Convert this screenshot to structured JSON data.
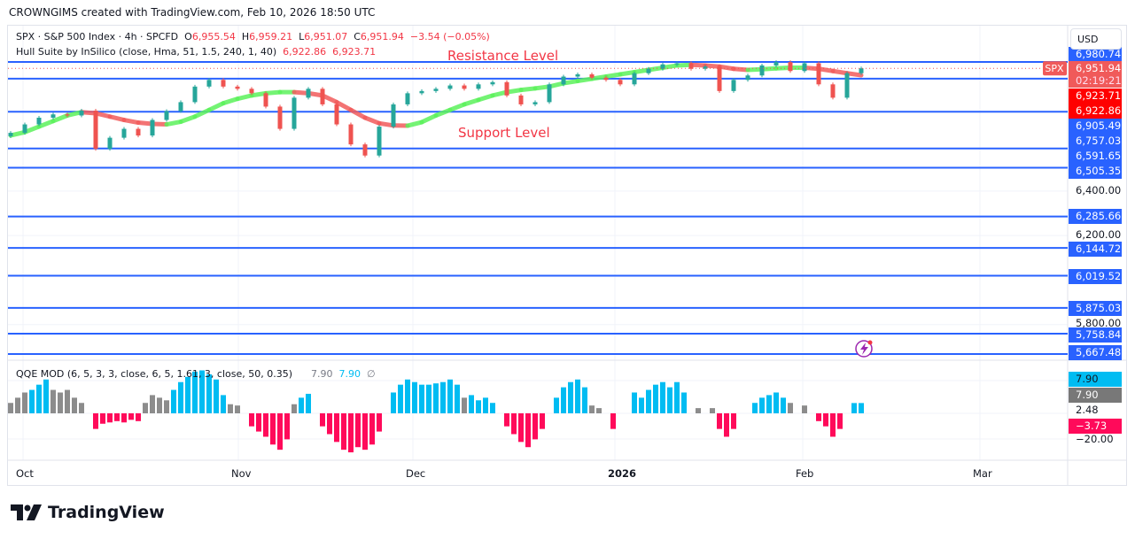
{
  "caption": "CROWNGIMS created with TradingView.com, Feb 10, 2026 18:50 UTC",
  "legend": {
    "symbol": "SPX · S&P 500 Index · 4h · SPCFD",
    "o_label": "O",
    "o": "6,955.54",
    "h_label": "H",
    "h": "6,959.21",
    "l_label": "L",
    "l": "6,951.07",
    "c_label": "C",
    "c": "6,951.94",
    "change": "−3.54 (−0.05%)",
    "hull": "Hull Suite by InSilico (close, Hma, 51, 1.5, 240, 1, 40)",
    "hull_v1": "6,922.86",
    "hull_v2": "6,923.71",
    "qqe": "QQE MOD (6, 5, 3, 3, close, 6, 5, 1.61, 3, close, 50, 0.35)",
    "qqe_v1": "7.90",
    "qqe_v2": "7.90",
    "qqe_v3": "∅"
  },
  "currency": "USD",
  "annotations": {
    "resistance": "Resistance Level",
    "support": "Support Level"
  },
  "symbol_tag": "SPX",
  "countdown": "02:19:21",
  "colors": {
    "up": "#26a69a",
    "down": "#ef5350",
    "level": "#2962ff",
    "hull_up": "#5cf25c",
    "hull_down": "#f25c5c",
    "qqe_blue": "#00bcf2",
    "qqe_gray": "#8c8c8c",
    "qqe_pink": "#ff0a5a",
    "price_tag": "#f05a5a",
    "hull_tag": "#ff0000"
  },
  "chart_data": {
    "type": "candlestick",
    "price_range": [
      5667.48,
      6980.74
    ],
    "levels": [
      6980.74,
      6905.49,
      6757.03,
      6591.65,
      6505.35,
      6285.66,
      6144.72,
      6019.52,
      5875.03,
      5758.84,
      5667.48
    ],
    "level_labels": [
      "6,980.74",
      "6,905.49",
      "6,757.03",
      "6,591.65",
      "6,505.35",
      "6,285.66",
      "6,144.72",
      "6,019.52",
      "5,875.03",
      "5,758.84",
      "5,667.48"
    ],
    "price_ticks": [
      "6,400.00",
      "6,200.00",
      "5,800.00"
    ],
    "last_price": "6,951.94",
    "hull_tag_1": "6,923.71",
    "hull_tag_2": "6,922.86",
    "x_ticks": [
      "Oct",
      "Nov",
      "Dec",
      "2026",
      "Feb",
      "Mar"
    ],
    "closes": [
      6662,
      6700,
      6730,
      6745,
      6740,
      6762,
      6590,
      6640,
      6680,
      6650,
      6720,
      6760,
      6800,
      6870,
      6900,
      6870,
      6860,
      6840,
      6780,
      6680,
      6820,
      6860,
      6790,
      6700,
      6610,
      6560,
      6690,
      6790,
      6840,
      6850,
      6860,
      6875,
      6860,
      6880,
      6890,
      6830,
      6790,
      6800,
      6880,
      6915,
      6925,
      6910,
      6900,
      6880,
      6930,
      6950,
      6970,
      6975,
      6950,
      6960,
      6850,
      6900,
      6920,
      6965,
      6980,
      6940,
      6975,
      6880,
      6820,
      6930,
      6952
    ],
    "hull": [
      6650,
      6665,
      6690,
      6715,
      6740,
      6755,
      6750,
      6735,
      6720,
      6708,
      6702,
      6700,
      6712,
      6735,
      6765,
      6795,
      6815,
      6830,
      6840,
      6845,
      6845,
      6840,
      6830,
      6800,
      6765,
      6730,
      6705,
      6695,
      6694,
      6710,
      6740,
      6765,
      6790,
      6810,
      6830,
      6845,
      6855,
      6862,
      6870,
      6885,
      6895,
      6905,
      6915,
      6925,
      6935,
      6945,
      6955,
      6965,
      6968,
      6965,
      6960,
      6950,
      6945,
      6948,
      6952,
      6955,
      6955,
      6950,
      6940,
      6930,
      6921
    ],
    "qqe_ticks": [
      "2.48",
      "−20.00"
    ],
    "qqe_tags": [
      "7.90",
      "7.90",
      "−3.73"
    ],
    "qqe_values": [
      8,
      12,
      16,
      18,
      22,
      26,
      18,
      16,
      18,
      12,
      8,
      0,
      -12,
      -8,
      -7,
      -6,
      -7,
      -5,
      -6,
      8,
      14,
      12,
      10,
      18,
      24,
      28,
      32,
      33,
      30,
      26,
      14,
      7,
      6,
      0,
      -10,
      -14,
      -18,
      -24,
      -28,
      -20,
      7,
      12,
      15,
      0,
      -10,
      -16,
      -22,
      -28,
      -30,
      -26,
      -28,
      -24,
      -14,
      0,
      16,
      22,
      26,
      24,
      22,
      22,
      23,
      24,
      26,
      22,
      12,
      14,
      10,
      12,
      8,
      0,
      -10,
      -16,
      -22,
      -26,
      -20,
      -12,
      0,
      12,
      20,
      24,
      26,
      20,
      6,
      4,
      0,
      -12,
      0,
      0,
      16,
      12,
      18,
      22,
      24,
      20,
      24,
      16,
      0,
      4,
      0,
      4,
      -12,
      -18,
      -12,
      0,
      0,
      8,
      12,
      14,
      16,
      12,
      8,
      0,
      6,
      0,
      -6,
      -10,
      -18,
      -12,
      0,
      7.9,
      7.9
    ],
    "qqe_states": "gggbbbgggggnppppppp ggggbbbbbbbbggnpppppp gbbnpppppppppnbbbbbbbbbbgbbbbnppppppnbbbbbggnpnnbbbbbbbbngngpppnnbbbbbgngnppppnbb"
  }
}
